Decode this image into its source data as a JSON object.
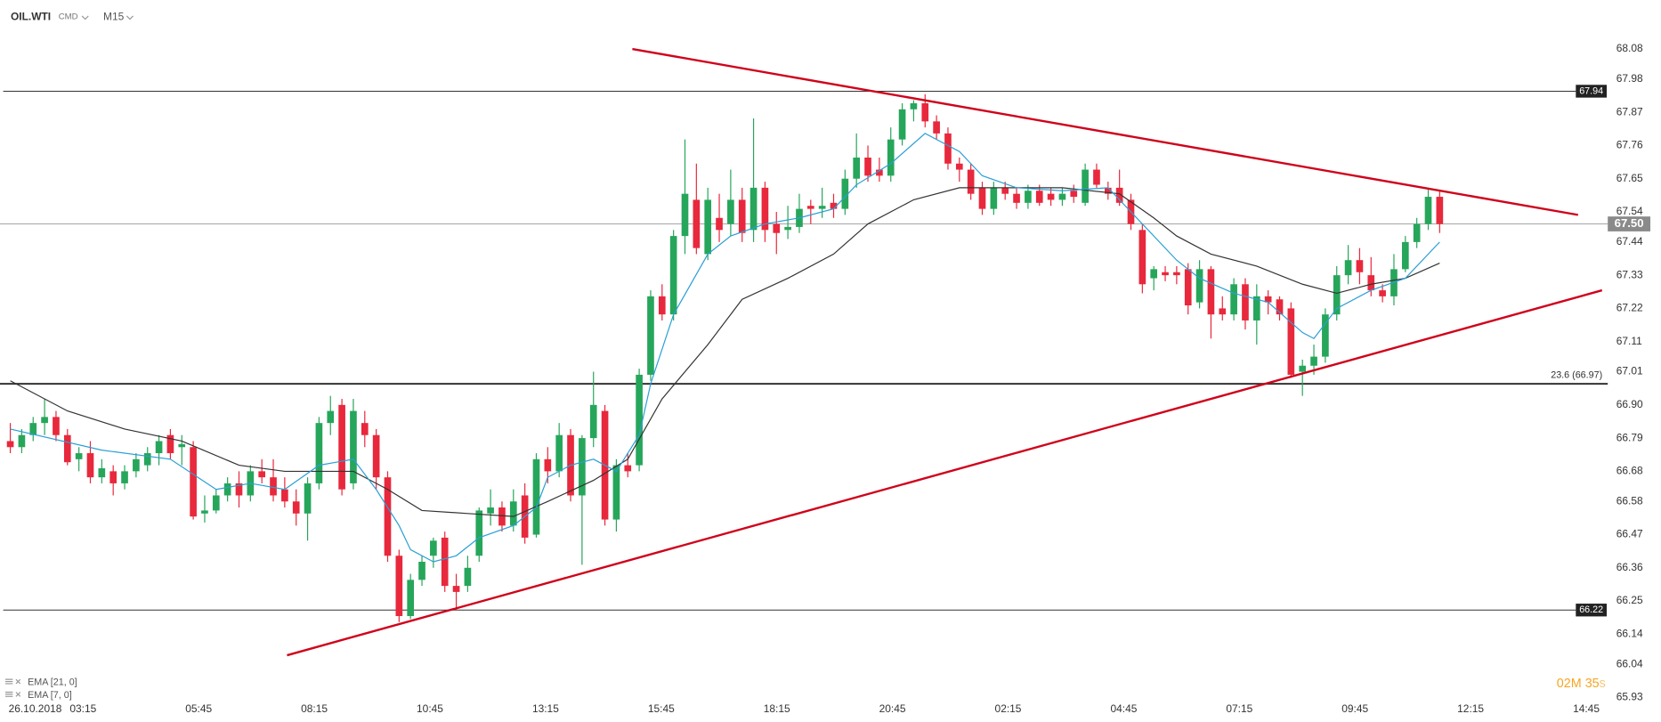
{
  "header": {
    "symbol": "OIL.WTI",
    "market": "CMD",
    "interval": "M15"
  },
  "timer": {
    "minutes": "02",
    "minutes_unit": "M",
    "seconds": "35",
    "seconds_unit": "s"
  },
  "chart_data": {
    "type": "candlestick",
    "up_color": "#26a65b",
    "down_color": "#e8283c",
    "date": "26.10.2018",
    "x_labels": [
      "03:15",
      "05:45",
      "08:15",
      "10:45",
      "13:15",
      "15:45",
      "18:15",
      "20:45",
      "02:15",
      "04:45",
      "07:15",
      "09:45",
      "12:15",
      "14:45"
    ],
    "xlim": [
      -0.9,
      139.7
    ],
    "ylim": [
      65.93,
      68.08
    ],
    "yticks": [
      68.08,
      67.98,
      67.87,
      67.76,
      67.65,
      67.54,
      67.44,
      67.33,
      67.22,
      67.11,
      67.01,
      {
        "value": 66.9,
        "label": "66.90"
      },
      66.79,
      66.68,
      66.58,
      66.47,
      66.36,
      66.25,
      66.14,
      66.04,
      65.93
    ],
    "candles": [
      [
        66.78,
        66.84,
        66.74,
        66.76
      ],
      [
        66.76,
        66.82,
        66.74,
        66.8
      ],
      [
        66.8,
        66.86,
        66.78,
        66.84
      ],
      [
        66.84,
        66.92,
        66.8,
        66.86
      ],
      [
        66.86,
        66.88,
        66.78,
        66.8
      ],
      [
        66.8,
        66.82,
        66.7,
        66.71
      ],
      [
        66.72,
        66.76,
        66.68,
        66.74
      ],
      [
        66.74,
        66.78,
        66.64,
        66.66
      ],
      [
        66.66,
        66.72,
        66.64,
        66.69
      ],
      [
        66.68,
        66.7,
        66.6,
        66.64
      ],
      [
        66.64,
        66.7,
        66.62,
        66.68
      ],
      [
        66.68,
        66.74,
        66.66,
        66.72
      ],
      [
        66.7,
        66.76,
        66.68,
        66.74
      ],
      [
        66.74,
        66.8,
        66.7,
        66.78
      ],
      [
        66.8,
        66.82,
        66.72,
        66.74
      ],
      [
        66.76,
        66.8,
        66.7,
        66.77
      ],
      [
        66.76,
        66.78,
        66.52,
        66.53
      ],
      [
        66.54,
        66.6,
        66.51,
        66.55
      ],
      [
        66.55,
        66.62,
        66.54,
        66.6
      ],
      [
        66.6,
        66.66,
        66.58,
        66.64
      ],
      [
        66.64,
        66.68,
        66.56,
        66.6
      ],
      [
        66.6,
        66.7,
        66.58,
        66.68
      ],
      [
        66.68,
        66.72,
        66.64,
        66.66
      ],
      [
        66.66,
        66.72,
        66.58,
        66.6
      ],
      [
        66.62,
        66.66,
        66.56,
        66.58
      ],
      [
        66.58,
        66.62,
        66.5,
        66.54
      ],
      [
        66.54,
        66.66,
        66.45,
        66.64
      ],
      [
        66.64,
        66.86,
        66.62,
        66.84
      ],
      [
        66.84,
        66.93,
        66.8,
        66.88
      ],
      [
        66.9,
        66.92,
        66.6,
        66.62
      ],
      [
        66.64,
        66.92,
        66.62,
        66.88
      ],
      [
        66.84,
        66.88,
        66.76,
        66.8
      ],
      [
        66.8,
        66.82,
        66.62,
        66.66
      ],
      [
        66.66,
        66.68,
        66.38,
        66.4
      ],
      [
        66.4,
        66.42,
        66.18,
        66.2
      ],
      [
        66.2,
        66.34,
        66.19,
        66.32
      ],
      [
        66.32,
        66.4,
        66.3,
        66.38
      ],
      [
        66.4,
        66.46,
        66.36,
        66.45
      ],
      [
        66.46,
        66.48,
        66.28,
        66.3
      ],
      [
        66.3,
        66.34,
        66.22,
        66.28
      ],
      [
        66.3,
        66.4,
        66.28,
        66.36
      ],
      [
        66.4,
        66.56,
        66.38,
        66.55
      ],
      [
        66.54,
        66.62,
        66.5,
        66.56
      ],
      [
        66.56,
        66.58,
        66.48,
        66.5
      ],
      [
        66.5,
        66.62,
        66.48,
        66.58
      ],
      [
        66.6,
        66.64,
        66.44,
        66.46
      ],
      [
        66.47,
        66.74,
        66.46,
        66.72
      ],
      [
        66.72,
        66.76,
        66.64,
        66.68
      ],
      [
        66.68,
        66.84,
        66.66,
        66.8
      ],
      [
        66.8,
        66.82,
        66.58,
        66.6
      ],
      [
        66.6,
        66.8,
        66.37,
        66.79
      ],
      [
        66.79,
        67.01,
        66.76,
        66.9
      ],
      [
        66.88,
        66.9,
        66.5,
        66.52
      ],
      [
        66.52,
        66.72,
        66.48,
        66.7
      ],
      [
        66.7,
        66.74,
        66.66,
        66.68
      ],
      [
        66.7,
        67.02,
        66.68,
        67.0
      ],
      [
        67.0,
        67.28,
        66.98,
        67.26
      ],
      [
        67.26,
        67.3,
        67.18,
        67.2
      ],
      [
        67.2,
        67.48,
        67.18,
        67.46
      ],
      [
        67.46,
        67.78,
        67.4,
        67.6
      ],
      [
        67.58,
        67.7,
        67.4,
        67.42
      ],
      [
        67.4,
        67.62,
        67.38,
        67.58
      ],
      [
        67.52,
        67.6,
        67.44,
        67.48
      ],
      [
        67.5,
        67.68,
        67.46,
        67.58
      ],
      [
        67.58,
        67.62,
        67.44,
        67.47
      ],
      [
        67.48,
        67.85,
        67.44,
        67.62
      ],
      [
        67.62,
        67.64,
        67.44,
        67.48
      ],
      [
        67.5,
        67.54,
        67.4,
        67.47
      ],
      [
        67.48,
        67.56,
        67.45,
        67.49
      ],
      [
        67.49,
        67.6,
        67.47,
        67.55
      ],
      [
        67.56,
        67.58,
        67.5,
        67.55
      ],
      [
        67.55,
        67.62,
        67.52,
        67.56
      ],
      [
        67.57,
        67.6,
        67.52,
        67.55
      ],
      [
        67.55,
        67.68,
        67.53,
        67.65
      ],
      [
        67.65,
        67.8,
        67.62,
        67.72
      ],
      [
        67.72,
        67.76,
        67.64,
        67.66
      ],
      [
        67.68,
        67.72,
        67.64,
        67.66
      ],
      [
        67.66,
        67.82,
        67.64,
        67.78
      ],
      [
        67.78,
        67.9,
        67.76,
        67.88
      ],
      [
        67.88,
        67.91,
        67.84,
        67.9
      ],
      [
        67.9,
        67.93,
        67.82,
        67.84
      ],
      [
        67.84,
        67.86,
        67.78,
        67.8
      ],
      [
        67.8,
        67.82,
        67.68,
        67.7
      ],
      [
        67.7,
        67.72,
        67.64,
        67.68
      ],
      [
        67.68,
        67.7,
        67.58,
        67.6
      ],
      [
        67.62,
        67.64,
        67.53,
        67.55
      ],
      [
        67.55,
        67.64,
        67.53,
        67.62
      ],
      [
        67.62,
        67.64,
        67.58,
        67.6
      ],
      [
        67.6,
        67.62,
        67.55,
        67.57
      ],
      [
        67.57,
        67.63,
        67.55,
        67.61
      ],
      [
        67.61,
        67.63,
        67.56,
        67.57
      ],
      [
        67.6,
        67.62,
        67.56,
        67.58
      ],
      [
        67.58,
        67.62,
        67.56,
        67.6
      ],
      [
        67.61,
        67.63,
        67.57,
        67.59
      ],
      [
        67.57,
        67.7,
        67.56,
        67.68
      ],
      [
        67.68,
        67.7,
        67.62,
        67.63
      ],
      [
        67.62,
        67.64,
        67.58,
        67.6
      ],
      [
        67.62,
        67.68,
        67.56,
        67.57
      ],
      [
        67.58,
        67.6,
        67.48,
        67.5
      ],
      [
        67.48,
        67.5,
        67.27,
        67.3
      ],
      [
        67.32,
        67.36,
        67.28,
        67.35
      ],
      [
        67.34,
        67.36,
        67.31,
        67.33
      ],
      [
        67.34,
        67.36,
        67.3,
        67.33
      ],
      [
        67.35,
        67.37,
        67.2,
        67.23
      ],
      [
        67.24,
        67.38,
        67.22,
        67.35
      ],
      [
        67.35,
        67.36,
        67.12,
        67.2
      ],
      [
        67.22,
        67.26,
        67.18,
        67.2
      ],
      [
        67.2,
        67.32,
        67.18,
        67.3
      ],
      [
        67.3,
        67.32,
        67.15,
        67.18
      ],
      [
        67.18,
        67.3,
        67.1,
        67.26
      ],
      [
        67.26,
        67.28,
        67.2,
        67.24
      ],
      [
        67.25,
        67.26,
        67.18,
        67.2
      ],
      [
        67.22,
        67.24,
        66.99,
        67.0
      ],
      [
        67.01,
        67.05,
        66.93,
        67.03
      ],
      [
        67.03,
        67.1,
        67.0,
        67.06
      ],
      [
        67.06,
        67.22,
        67.04,
        67.2
      ],
      [
        67.2,
        67.36,
        67.18,
        67.33
      ],
      [
        67.33,
        67.43,
        67.3,
        67.38
      ],
      [
        67.38,
        67.42,
        67.3,
        67.34
      ],
      [
        67.33,
        67.39,
        67.26,
        67.28
      ],
      [
        67.28,
        67.3,
        67.24,
        67.26
      ],
      [
        67.26,
        67.4,
        67.23,
        67.35
      ],
      [
        67.35,
        67.46,
        67.34,
        67.44
      ],
      [
        67.44,
        67.52,
        67.42,
        67.5
      ],
      [
        67.5,
        67.62,
        67.48,
        67.59
      ],
      [
        67.59,
        67.61,
        67.47,
        67.5
      ]
    ],
    "series": [
      {
        "name": "EMA [21, 0]",
        "color": "#333333",
        "x": [
          0,
          5,
          10,
          15,
          20,
          24,
          30,
          33,
          36,
          40,
          44,
          47,
          51,
          54,
          57,
          61,
          64,
          68,
          72,
          75,
          79,
          83,
          92,
          97,
          100,
          102,
          105,
          109,
          113,
          116,
          119,
          122,
          125
        ],
        "values": [
          66.98,
          66.88,
          66.82,
          66.78,
          66.7,
          66.68,
          66.68,
          66.62,
          66.55,
          66.54,
          66.53,
          66.58,
          66.65,
          66.72,
          66.92,
          67.1,
          67.25,
          67.32,
          67.4,
          67.5,
          67.58,
          67.62,
          67.62,
          67.6,
          67.52,
          67.46,
          67.4,
          67.36,
          67.3,
          67.27,
          67.3,
          67.32,
          67.37
        ]
      },
      {
        "name": "EMA [7, 0]",
        "color": "#2a9fd6",
        "x": [
          0,
          8,
          14,
          18,
          21,
          24,
          27,
          30,
          32,
          34,
          35,
          37,
          39,
          41,
          44,
          46,
          47,
          49,
          51,
          53,
          55,
          56,
          58,
          61,
          63,
          66,
          69,
          72,
          74,
          77,
          80,
          83,
          85,
          88,
          92,
          96,
          99,
          102,
          104,
          107,
          110,
          113,
          114,
          116,
          119,
          122,
          125
        ],
        "values": [
          66.82,
          66.75,
          66.72,
          66.62,
          66.64,
          66.62,
          66.7,
          66.72,
          66.62,
          66.5,
          66.42,
          66.38,
          66.4,
          66.46,
          66.5,
          66.56,
          66.66,
          66.7,
          66.72,
          66.68,
          66.8,
          66.97,
          67.2,
          67.4,
          67.46,
          67.5,
          67.52,
          67.55,
          67.63,
          67.7,
          67.8,
          67.74,
          67.66,
          67.62,
          67.61,
          67.62,
          67.5,
          67.38,
          67.32,
          67.27,
          67.24,
          67.14,
          67.12,
          67.22,
          67.28,
          67.32,
          67.44
        ]
      }
    ],
    "levels": [
      67.94,
      66.22
    ],
    "fib_level": {
      "value": 66.97,
      "label": "23.6 (66.97)"
    },
    "last_price": {
      "value": 67.5,
      "label": "67.50"
    },
    "trendline_color": "#d0021b",
    "trendlines": [
      {
        "x": [
          54.4,
          137.1
        ],
        "values": [
          68.08,
          67.53
        ]
      },
      {
        "x": [
          24.2,
          139.2
        ],
        "values": [
          66.07,
          67.28
        ]
      }
    ]
  }
}
